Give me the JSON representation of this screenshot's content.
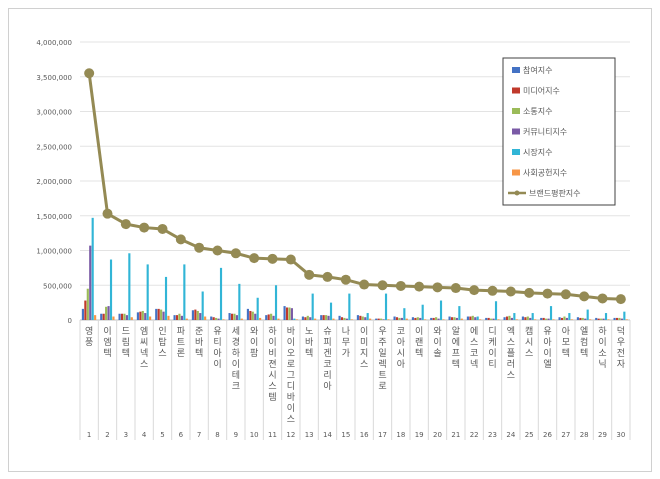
{
  "chart_data": {
    "type": "bar",
    "title": "",
    "ylim": [
      0,
      4000000
    ],
    "yticks": [
      "0",
      "500,000",
      "1,000,000",
      "1,500,000",
      "2,000,000",
      "2,500,000",
      "3,000,000",
      "3,500,000",
      "4,000,000"
    ],
    "categories": [
      "영풍",
      "이엠텍",
      "드림텍",
      "엠씨넥스",
      "인탑스",
      "파트론",
      "준바텍",
      "유티아이",
      "세경하이테크",
      "와이팜",
      "하이비젼시스템",
      "바이오로그디바이스",
      "노바텍",
      "슈피겐코리아",
      "나무가",
      "이미지스",
      "우주일렉트로",
      "코아시아",
      "이랜텍",
      "와이솔",
      "알에프텍",
      "에스코넥",
      "디케이티",
      "엑스플러스",
      "캠시스",
      "유아이엘",
      "아모텍",
      "엘컴텍",
      "하이소닉",
      "덕우전자"
    ],
    "ranks": [
      "1",
      "2",
      "3",
      "4",
      "5",
      "6",
      "7",
      "8",
      "9",
      "10",
      "11",
      "12",
      "13",
      "14",
      "15",
      "16",
      "17",
      "18",
      "19",
      "20",
      "21",
      "22",
      "23",
      "24",
      "25",
      "26",
      "27",
      "28",
      "29",
      "30"
    ],
    "series": [
      {
        "name": "참여지수",
        "color": "#4472c4",
        "values": [
          160000,
          90000,
          90000,
          110000,
          160000,
          70000,
          140000,
          50000,
          100000,
          160000,
          70000,
          200000,
          50000,
          70000,
          60000,
          70000,
          20000,
          50000,
          40000,
          30000,
          50000,
          50000,
          30000,
          40000,
          50000,
          30000,
          40000,
          40000,
          30000,
          30000
        ]
      },
      {
        "name": "미디어지수",
        "color": "#c0392b",
        "values": [
          280000,
          90000,
          90000,
          120000,
          160000,
          70000,
          150000,
          40000,
          90000,
          130000,
          80000,
          180000,
          40000,
          70000,
          40000,
          60000,
          20000,
          40000,
          30000,
          30000,
          40000,
          50000,
          30000,
          50000,
          40000,
          30000,
          30000,
          30000,
          20000,
          30000
        ]
      },
      {
        "name": "소통지수",
        "color": "#9bbb59",
        "values": [
          450000,
          190000,
          90000,
          130000,
          150000,
          90000,
          130000,
          30000,
          90000,
          120000,
          90000,
          180000,
          60000,
          70000,
          30000,
          50000,
          20000,
          30000,
          40000,
          40000,
          40000,
          60000,
          20000,
          60000,
          50000,
          20000,
          50000,
          30000,
          20000,
          30000
        ]
      },
      {
        "name": "커뮤니티지수",
        "color": "#7a5aa6",
        "values": [
          1070000,
          200000,
          70000,
          100000,
          120000,
          60000,
          100000,
          20000,
          70000,
          90000,
          60000,
          170000,
          40000,
          60000,
          20000,
          40000,
          10000,
          30000,
          30000,
          20000,
          30000,
          40000,
          20000,
          30000,
          30000,
          20000,
          30000,
          20000,
          20000,
          20000
        ]
      },
      {
        "name": "시장지수",
        "color": "#31b5d6",
        "values": [
          1470000,
          870000,
          960000,
          800000,
          620000,
          800000,
          410000,
          750000,
          520000,
          320000,
          500000,
          20000,
          380000,
          250000,
          380000,
          100000,
          380000,
          170000,
          220000,
          280000,
          200000,
          50000,
          270000,
          100000,
          100000,
          200000,
          100000,
          150000,
          100000,
          120000
        ]
      },
      {
        "name": "사회공헌지수",
        "color": "#f79646",
        "values": [
          70000,
          50000,
          40000,
          50000,
          60000,
          20000,
          50000,
          10000,
          20000,
          30000,
          20000,
          10000,
          20000,
          20000,
          10000,
          20000,
          10000,
          20000,
          10000,
          10000,
          20000,
          10000,
          10000,
          10000,
          10000,
          10000,
          10000,
          10000,
          10000,
          10000
        ]
      }
    ],
    "line": {
      "name": "브랜드평판지수",
      "color": "#948a54",
      "values": [
        3550000,
        1530000,
        1380000,
        1330000,
        1310000,
        1160000,
        1040000,
        1000000,
        960000,
        890000,
        880000,
        870000,
        650000,
        620000,
        580000,
        510000,
        500000,
        490000,
        480000,
        470000,
        460000,
        430000,
        420000,
        410000,
        390000,
        380000,
        370000,
        340000,
        310000,
        300000
      ]
    },
    "legend_position": "top-right",
    "grid": true
  }
}
